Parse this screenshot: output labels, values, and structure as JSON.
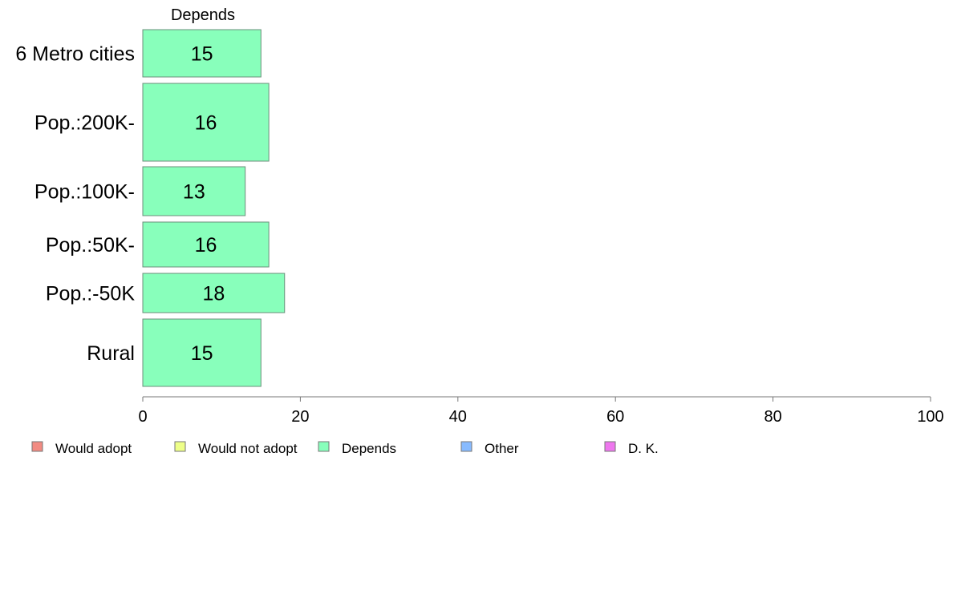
{
  "chart_data": {
    "type": "bar",
    "orientation": "horizontal",
    "stacked": true,
    "shown_series_title": "Depends",
    "categories": [
      "6 Metro cities",
      "Pop.:200K-",
      "Pop.:100K-",
      "Pop.:50K-",
      "Pop.:-50K",
      "Rural"
    ],
    "series": [
      {
        "name": "Depends",
        "values": [
          15,
          16,
          13,
          16,
          18,
          15
        ],
        "color": "#88ffbb"
      }
    ],
    "xlim": [
      0,
      100
    ],
    "xticks": [
      "0",
      "20",
      "40",
      "60",
      "80",
      "100"
    ],
    "grid": false,
    "legend_position": "bottom",
    "legend": [
      {
        "label": "Would adopt",
        "color": "#f28b82"
      },
      {
        "label": "Would not adopt",
        "color": "#eeff88"
      },
      {
        "label": "Depends",
        "color": "#88ffbb"
      },
      {
        "label": "Other",
        "color": "#88bbff"
      },
      {
        "label": "D. K.",
        "color": "#ee77ee"
      }
    ]
  }
}
